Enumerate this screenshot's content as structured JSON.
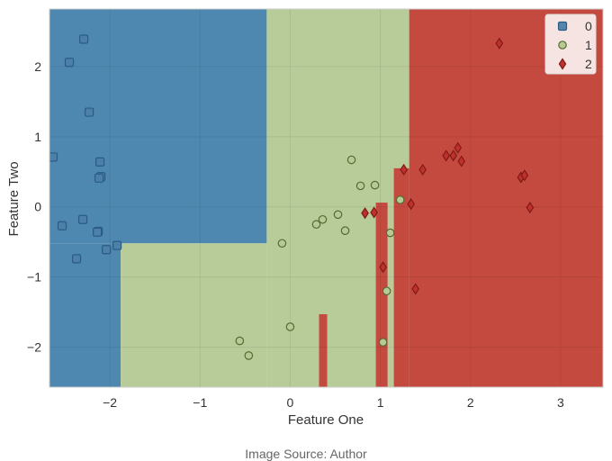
{
  "chart_data": {
    "type": "scatter",
    "title": "",
    "xlabel": "Feature One",
    "ylabel": "Feature Two",
    "xlim": [
      -2.67,
      3.47
    ],
    "ylim": [
      -2.57,
      2.82
    ],
    "xticks": [
      -2,
      -1,
      0,
      1,
      2,
      3
    ],
    "yticks": [
      -2,
      -1,
      0,
      1,
      2
    ],
    "xtick_labels": [
      "−2",
      "−1",
      "0",
      "1",
      "2",
      "3"
    ],
    "ytick_labels": [
      "−2",
      "−1",
      "0",
      "1",
      "2"
    ],
    "grid": true,
    "legend_position": "top-right",
    "decision_regions": [
      {
        "class": "0",
        "x": [
          -2.67,
          -0.26
        ],
        "y": [
          -0.52,
          2.82
        ]
      },
      {
        "class": "0",
        "x": [
          -2.67,
          -1.88
        ],
        "y": [
          -2.57,
          -0.52
        ]
      },
      {
        "class": "1",
        "x": [
          -1.88,
          -0.26
        ],
        "y": [
          -2.57,
          -0.52
        ]
      },
      {
        "class": "1",
        "x": [
          -0.26,
          1.32
        ],
        "y": [
          -2.57,
          2.82
        ]
      },
      {
        "class": "2",
        "x": [
          1.32,
          3.47
        ],
        "y": [
          -2.57,
          2.82
        ]
      },
      {
        "class": "2",
        "x": [
          1.15,
          1.32
        ],
        "y": [
          -2.57,
          0.55
        ]
      },
      {
        "class": "2",
        "x": [
          0.95,
          1.08
        ],
        "y": [
          -2.57,
          0.06
        ]
      },
      {
        "class": "2",
        "x": [
          0.32,
          0.41
        ],
        "y": [
          -2.57,
          -1.53
        ]
      }
    ],
    "series": [
      {
        "name": "0",
        "marker": "square",
        "color": "#4d7fa8",
        "edge": "#2a5b85",
        "x": [
          -2.29,
          -2.45,
          -2.23,
          -2.63,
          -2.11,
          -2.1,
          -2.12,
          -2.53,
          -2.3,
          -2.13,
          -2.14,
          -2.04,
          -1.92,
          -2.37
        ],
        "y": [
          2.39,
          2.06,
          1.35,
          0.71,
          0.64,
          0.43,
          0.41,
          -0.27,
          -0.18,
          -0.35,
          -0.36,
          -0.61,
          -0.55,
          -0.74
        ]
      },
      {
        "name": "1",
        "marker": "circle",
        "color": "#b6c997",
        "edge": "#556b2f",
        "x": [
          0.68,
          0.78,
          0.94,
          0.53,
          0.36,
          0.29,
          0.61,
          1.22,
          1.11,
          -0.09,
          1.07,
          0.0,
          -0.56,
          -0.46,
          1.03
        ],
        "y": [
          0.67,
          0.3,
          0.31,
          -0.11,
          -0.18,
          -0.25,
          -0.34,
          0.1,
          -0.37,
          -0.52,
          -1.2,
          -1.71,
          -1.91,
          -2.12,
          -1.93
        ]
      },
      {
        "name": "2",
        "marker": "diamond",
        "color": "#c0312b",
        "edge": "#7f1a17",
        "x": [
          2.32,
          1.26,
          1.47,
          1.73,
          1.81,
          1.86,
          1.9,
          2.56,
          2.6,
          2.66,
          0.83,
          0.93,
          1.34,
          1.03,
          1.39
        ],
        "y": [
          2.33,
          0.53,
          0.53,
          0.73,
          0.73,
          0.84,
          0.65,
          0.42,
          0.45,
          -0.01,
          -0.09,
          -0.08,
          0.04,
          -0.86,
          -1.17
        ]
      }
    ],
    "region_colors": {
      "0": "#4e88b0",
      "1": "#b8cc9a",
      "2": "#c44a3f"
    }
  },
  "caption": "Image Source: Author"
}
